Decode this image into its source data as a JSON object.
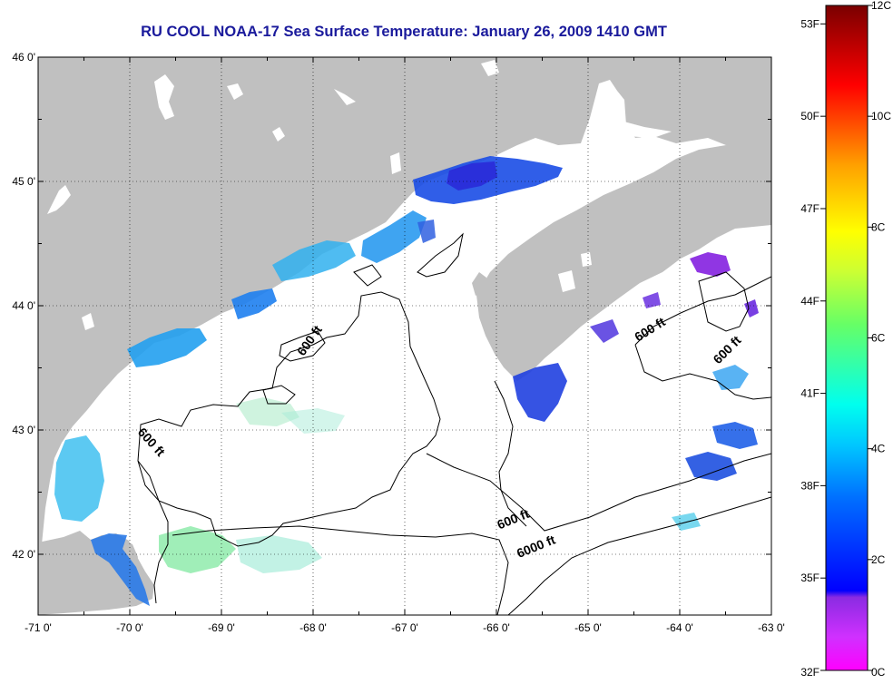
{
  "title": "RU COOL  NOAA-17  Sea Surface Temperature:  January 26, 2009 1410 GMT",
  "map": {
    "lon_range": [
      -71,
      -63
    ],
    "lat_range": [
      41.5,
      46
    ],
    "lon_ticks": [
      "-71 0'",
      "-70 0'",
      "-69 0'",
      "-68 0'",
      "-67 0'",
      "-66 0'",
      "-65 0'",
      "-64 0'",
      "-63 0'"
    ],
    "lat_ticks": [
      "46 0'",
      "45 0'",
      "44 0'",
      "43 0'",
      "42 0'"
    ],
    "grid": "dotted",
    "land_color": "#c0c0c0",
    "water_color": "#ffffff",
    "contour_labels": [
      {
        "text": "600 ft",
        "lon": -68.0,
        "lat": 43.7,
        "angle": -55
      },
      {
        "text": "600 ft",
        "lon": -69.8,
        "lat": 42.88,
        "angle": 48
      },
      {
        "text": "600 ft",
        "lon": -64.3,
        "lat": 43.78,
        "angle": -32
      },
      {
        "text": "600 ft",
        "lon": -63.45,
        "lat": 43.62,
        "angle": -45
      },
      {
        "text": "600 ft",
        "lon": -65.8,
        "lat": 42.25,
        "angle": -22
      },
      {
        "text": "6000 ft",
        "lon": -65.55,
        "lat": 42.03,
        "angle": -22
      }
    ]
  },
  "colorbar": {
    "fahrenheit_labels": [
      "53F",
      "50F",
      "47F",
      "44F",
      "41F",
      "38F",
      "35F",
      "32F"
    ],
    "celsius_labels": [
      "12C",
      "10C",
      "8C",
      "6C",
      "4C",
      "2C",
      "0C"
    ],
    "colors": [
      "#800000",
      "#ff0000",
      "#ff8000",
      "#ffff00",
      "#80ff80",
      "#00ffff",
      "#0080ff",
      "#0000ff",
      "#8000ff",
      "#ff00ff"
    ]
  }
}
